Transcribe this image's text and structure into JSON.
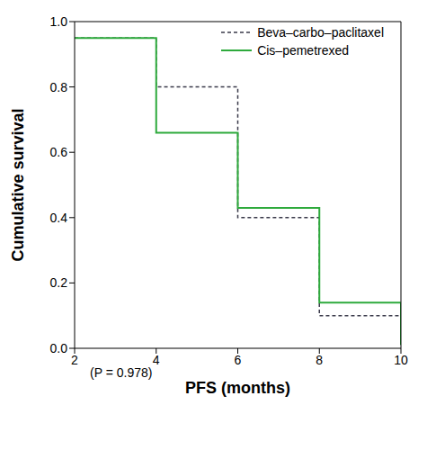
{
  "chart_data": {
    "type": "line",
    "x_label": "PFS (months)",
    "y_label": "Cumulative survival",
    "annotation": "(P = 0.978)",
    "x": [
      2,
      4,
      6,
      8,
      10
    ],
    "series": [
      {
        "name": "Beva–carbo–paclitaxel",
        "color": "#3a3a4a",
        "line_style": "dashed",
        "values": [
          0.95,
          0.8,
          0.4,
          0.1,
          0.1
        ]
      },
      {
        "name": "Cis–pemetrexed",
        "color": "#2eaa3c",
        "line_style": "solid",
        "values": [
          0.95,
          0.66,
          0.43,
          0.14,
          0.01
        ]
      }
    ],
    "xlim": [
      2,
      10
    ],
    "xticks": [
      2,
      4,
      6,
      8,
      10
    ],
    "ylim": [
      0,
      1
    ],
    "yticks": [
      {
        "value": 0,
        "label": "0.0"
      },
      0.2,
      0.4,
      0.6,
      0.8,
      {
        "value": 1,
        "label": "1.0"
      }
    ],
    "legend": "upper right",
    "grid": false
  }
}
